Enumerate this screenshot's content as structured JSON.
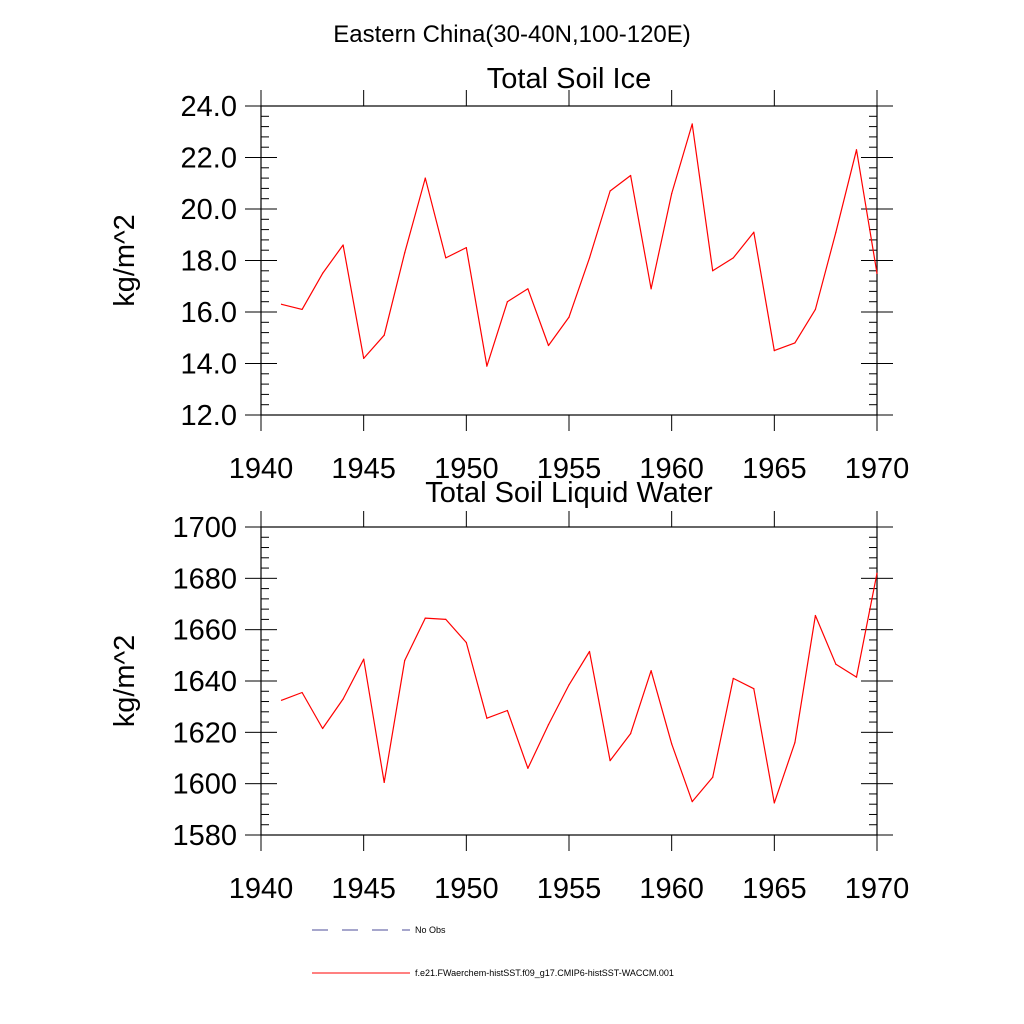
{
  "figure": {
    "suptitle": "Eastern China(30-40N,100-120E)"
  },
  "chart_data": [
    {
      "type": "line",
      "title": "Total Soil Ice",
      "xlabel": "",
      "ylabel": "kg/m^2",
      "xlim": [
        1940,
        1970
      ],
      "ylim": [
        12.0,
        24.0
      ],
      "x_ticks": [
        "1940",
        "1945",
        "1950",
        "1955",
        "1960",
        "1965",
        "1970"
      ],
      "y_ticks": [
        "12.0",
        "14.0",
        "16.0",
        "18.0",
        "20.0",
        "22.0",
        "24.0"
      ],
      "grid": false,
      "series": [
        {
          "name": "f.e21.FWaerchem-histSST.f09_g17.CMIP6-histSST-WACCM.001",
          "color": "#ff0000",
          "x": [
            1941,
            1942,
            1943,
            1944,
            1945,
            1946,
            1947,
            1948,
            1949,
            1950,
            1951,
            1952,
            1953,
            1954,
            1955,
            1956,
            1957,
            1958,
            1959,
            1960,
            1961,
            1962,
            1963,
            1964,
            1965,
            1966,
            1967,
            1968,
            1969,
            1970
          ],
          "y": [
            16.3,
            16.1,
            17.5,
            18.6,
            14.2,
            15.1,
            18.3,
            21.2,
            18.1,
            18.5,
            13.9,
            16.4,
            16.9,
            14.7,
            15.8,
            18.1,
            20.7,
            21.3,
            16.9,
            20.6,
            23.3,
            17.6,
            18.1,
            19.1,
            14.5,
            14.8,
            16.1,
            19.1,
            22.3,
            17.5
          ]
        }
      ]
    },
    {
      "type": "line",
      "title": "Total Soil Liquid Water",
      "xlabel": "",
      "ylabel": "kg/m^2",
      "xlim": [
        1940,
        1970
      ],
      "ylim": [
        1580,
        1700
      ],
      "x_ticks": [
        "1940",
        "1945",
        "1950",
        "1955",
        "1960",
        "1965",
        "1970"
      ],
      "y_ticks": [
        "1580",
        "1600",
        "1620",
        "1640",
        "1660",
        "1680",
        "1700"
      ],
      "grid": false,
      "series": [
        {
          "name": "f.e21.FWaerchem-histSST.f09_g17.CMIP6-histSST-WACCM.001",
          "color": "#ff0000",
          "x": [
            1941,
            1942,
            1943,
            1944,
            1945,
            1946,
            1947,
            1948,
            1949,
            1950,
            1951,
            1952,
            1953,
            1954,
            1955,
            1956,
            1957,
            1958,
            1959,
            1960,
            1961,
            1962,
            1963,
            1964,
            1965,
            1966,
            1967,
            1968,
            1969,
            1970
          ],
          "y": [
            1632.5,
            1635.5,
            1621.5,
            1633,
            1648.5,
            1600.5,
            1648,
            1664.5,
            1664,
            1655,
            1625.5,
            1628.5,
            1606,
            1623,
            1638.5,
            1651.5,
            1609,
            1619.5,
            1644,
            1615.5,
            1593,
            1602.5,
            1641,
            1637,
            1592.5,
            1616,
            1665.5,
            1646.5,
            1641.5,
            1682
          ]
        }
      ]
    }
  ],
  "legend": {
    "placement": "bottom",
    "entries": [
      {
        "label": "No Obs",
        "color": "#4d4d99",
        "style": "dashed"
      },
      {
        "label": "f.e21.FWaerchem-histSST.f09_g17.CMIP6-histSST-WACCM.001",
        "color": "#ff0000",
        "style": "solid"
      }
    ]
  }
}
